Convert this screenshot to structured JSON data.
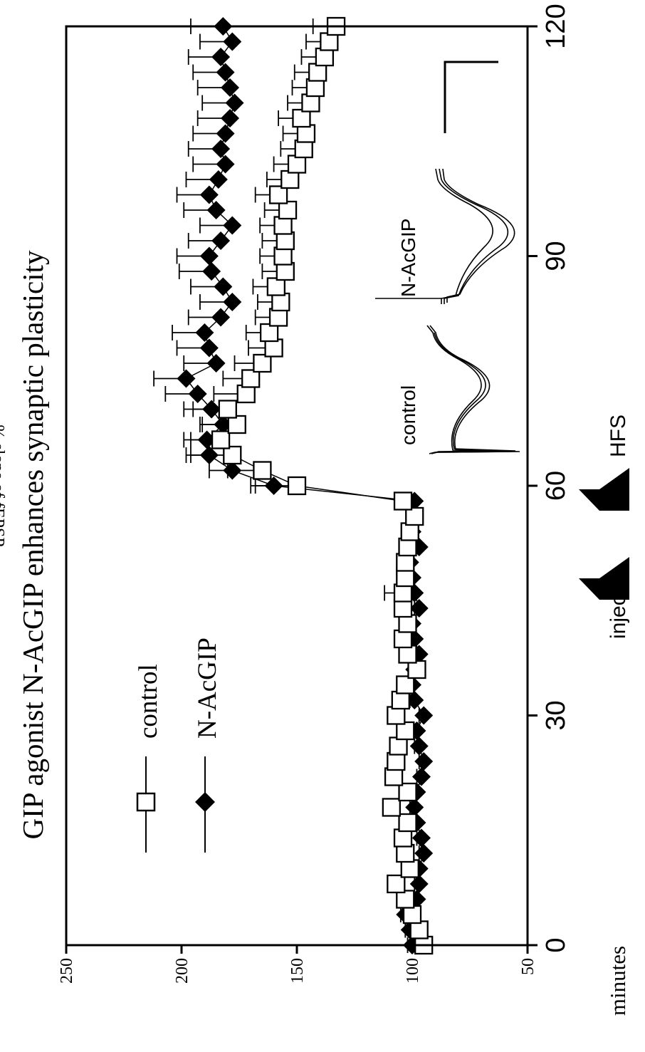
{
  "chart_data": {
    "type": "scatter",
    "title": "GIP agonist N-AcGIP enhances synaptic plasticity",
    "xlabel": "minutes",
    "ylabel": "% slope of fEPSP",
    "xlim": [
      0,
      120
    ],
    "ylim": [
      50,
      250
    ],
    "x_ticks": [
      0,
      30,
      60,
      90,
      120
    ],
    "y_ticks": [
      50,
      100,
      150,
      200,
      250
    ],
    "grid": false,
    "legend_placement": "upper-left",
    "legend": [
      {
        "key": "control",
        "label": "control",
        "marker": "open-square"
      },
      {
        "key": "nacgip",
        "label": "N-AcGIP",
        "marker": "filled-diamond"
      }
    ],
    "annotations": {
      "inject": {
        "label": "inject.",
        "x": 30
      },
      "hfs": {
        "label": "HFS",
        "x": 60
      }
    },
    "inset_labels": {
      "control": "control",
      "nacgip": "N-AcGIP"
    },
    "series": [
      {
        "name": "control",
        "x": [
          0,
          2,
          4,
          6,
          8,
          10,
          12,
          14,
          16,
          18,
          20,
          22,
          24,
          26,
          28,
          30,
          32,
          34,
          36,
          38,
          40,
          42,
          44,
          46,
          48,
          50,
          52,
          54,
          56,
          58,
          60,
          62,
          64,
          66,
          68,
          70,
          72,
          74,
          76,
          78,
          80,
          82,
          84,
          86,
          88,
          90,
          92,
          94,
          96,
          98,
          100,
          102,
          104,
          106,
          108,
          110,
          112,
          114,
          116,
          118,
          120
        ],
        "y": [
          95,
          97,
          100,
          103,
          107,
          101,
          103,
          104,
          102,
          109,
          102,
          108,
          107,
          106,
          103,
          107,
          105,
          103,
          98,
          102,
          104,
          102,
          104,
          104,
          103,
          103,
          102,
          101,
          99,
          104,
          150,
          165,
          178,
          183,
          176,
          180,
          172,
          170,
          165,
          160,
          162,
          158,
          157,
          159,
          155,
          156,
          155,
          156,
          154,
          158,
          153,
          150,
          147,
          146,
          148,
          144,
          142,
          141,
          138,
          136,
          133
        ],
        "error": [
          3,
          3,
          3,
          3,
          3,
          3,
          3,
          3,
          3,
          3,
          3,
          3,
          3,
          3,
          3,
          3,
          3,
          3,
          3,
          3,
          3,
          3,
          3,
          8,
          3,
          3,
          3,
          3,
          3,
          3,
          18,
          15,
          18,
          13,
          15,
          15,
          14,
          12,
          12,
          11,
          10,
          10,
          10,
          10,
          10,
          10,
          10,
          10,
          10,
          10,
          10,
          10,
          10,
          10,
          10,
          10,
          10,
          10,
          10,
          10,
          10
        ]
      },
      {
        "name": "N-AcGIP",
        "x": [
          0,
          2,
          4,
          6,
          8,
          10,
          12,
          14,
          16,
          18,
          20,
          22,
          24,
          26,
          28,
          30,
          32,
          34,
          36,
          38,
          40,
          42,
          44,
          46,
          48,
          50,
          52,
          54,
          56,
          58,
          60,
          62,
          64,
          66,
          68,
          70,
          72,
          74,
          76,
          78,
          80,
          82,
          84,
          86,
          88,
          90,
          92,
          94,
          96,
          98,
          100,
          102,
          104,
          106,
          108,
          110,
          112,
          114,
          116,
          118,
          120
        ],
        "y": [
          100,
          101,
          103,
          98,
          97,
          97,
          95,
          96,
          98,
          99,
          98,
          96,
          95,
          97,
          98,
          95,
          99,
          100,
          99,
          97,
          99,
          100,
          97,
          99,
          100,
          101,
          97,
          100,
          99,
          99,
          160,
          178,
          188,
          189,
          182,
          187,
          193,
          198,
          185,
          188,
          190,
          183,
          178,
          182,
          187,
          188,
          183,
          178,
          185,
          188,
          184,
          181,
          183,
          181,
          179,
          177,
          179,
          181,
          183,
          178,
          182
        ],
        "error": [
          2,
          2,
          2,
          3,
          2,
          2,
          2,
          2,
          2,
          2,
          2,
          2,
          2,
          2,
          2,
          2,
          2,
          2,
          2,
          2,
          2,
          2,
          2,
          5,
          2,
          2,
          2,
          2,
          2,
          2,
          10,
          10,
          10,
          10,
          10,
          12,
          14,
          14,
          14,
          14,
          14,
          14,
          14,
          14,
          14,
          14,
          14,
          14,
          14,
          14,
          14,
          14,
          14,
          14,
          14,
          14,
          14,
          14,
          14,
          14,
          14
        ]
      }
    ]
  },
  "colors": {
    "ink": "#000000",
    "background": "#ffffff",
    "marker_fill_open": "#ffffff"
  }
}
